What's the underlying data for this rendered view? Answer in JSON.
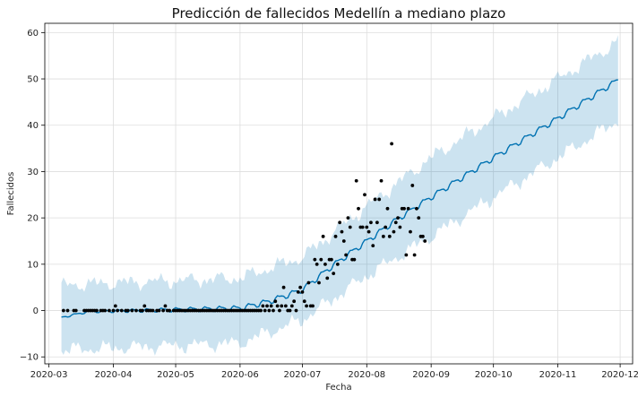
{
  "chart_data": {
    "type": "line",
    "title": "Predicción de fallecidos Medellín a mediano plazo",
    "xlabel": "Fecha",
    "ylabel": "Fallecidos",
    "grid": true,
    "xlim": [
      "2020-02-28",
      "2020-12-07"
    ],
    "ylim": [
      -11.5,
      62
    ],
    "x_ticks": [
      "2020-03-01",
      "2020-04-01",
      "2020-05-01",
      "2020-06-01",
      "2020-07-01",
      "2020-08-01",
      "2020-09-01",
      "2020-10-01",
      "2020-11-01",
      "2020-12-01"
    ],
    "x_tick_labels": [
      "2020-03",
      "2020-04",
      "2020-05",
      "2020-06",
      "2020-07",
      "2020-08",
      "2020-09",
      "2020-10",
      "2020-11",
      "2020-12"
    ],
    "y_ticks": [
      -10,
      0,
      10,
      20,
      30,
      40,
      50,
      60
    ],
    "colors": {
      "forecast": "#0072B2",
      "band": "#0072B2",
      "observed": "#000000"
    },
    "forecast": {
      "start": "2020-03-07",
      "end": "2020-11-30",
      "knots": [
        [
          "2020-03-07",
          -1.5
        ],
        [
          "2020-03-20",
          -0.2
        ],
        [
          "2020-06-01",
          0.5
        ],
        [
          "2020-06-15",
          2.0
        ],
        [
          "2020-07-01",
          4.5
        ],
        [
          "2020-07-15",
          9.5
        ],
        [
          "2020-08-01",
          15.0
        ],
        [
          "2020-08-15",
          19.5
        ],
        [
          "2020-09-01",
          24.5
        ],
        [
          "2020-10-01",
          33.0
        ],
        [
          "2020-11-01",
          41.5
        ],
        [
          "2020-11-30",
          49.8
        ]
      ],
      "band_lower_knots": [
        [
          "2020-03-07",
          -8.5
        ],
        [
          "2020-06-01",
          -7.0
        ],
        [
          "2020-07-01",
          -2.0
        ],
        [
          "2020-08-01",
          7.5
        ],
        [
          "2020-09-01",
          16.0
        ],
        [
          "2020-10-01",
          24.5
        ],
        [
          "2020-11-01",
          33.0
        ],
        [
          "2020-11-30",
          41.0
        ]
      ],
      "band_upper_knots": [
        [
          "2020-03-07",
          5.5
        ],
        [
          "2020-06-01",
          7.0
        ],
        [
          "2020-07-01",
          11.5
        ],
        [
          "2020-08-01",
          22.5
        ],
        [
          "2020-09-01",
          33.0
        ],
        [
          "2020-10-01",
          41.5
        ],
        [
          "2020-11-01",
          50.0
        ],
        [
          "2020-11-30",
          58.0
        ]
      ]
    },
    "observed": [
      [
        "2020-03-08",
        0
      ],
      [
        "2020-03-10",
        0
      ],
      [
        "2020-03-13",
        0
      ],
      [
        "2020-03-14",
        0
      ],
      [
        "2020-03-18",
        0
      ],
      [
        "2020-03-19",
        0
      ],
      [
        "2020-03-20",
        0
      ],
      [
        "2020-03-21",
        0
      ],
      [
        "2020-03-22",
        0
      ],
      [
        "2020-03-23",
        0
      ],
      [
        "2020-03-24",
        0
      ],
      [
        "2020-03-26",
        0
      ],
      [
        "2020-03-27",
        0
      ],
      [
        "2020-03-28",
        0
      ],
      [
        "2020-03-30",
        0
      ],
      [
        "2020-04-01",
        0
      ],
      [
        "2020-04-02",
        1
      ],
      [
        "2020-04-03",
        0
      ],
      [
        "2020-04-05",
        0
      ],
      [
        "2020-04-07",
        0
      ],
      [
        "2020-04-08",
        0
      ],
      [
        "2020-04-10",
        0
      ],
      [
        "2020-04-12",
        0
      ],
      [
        "2020-04-14",
        0
      ],
      [
        "2020-04-15",
        0
      ],
      [
        "2020-04-16",
        1
      ],
      [
        "2020-04-17",
        0
      ],
      [
        "2020-04-18",
        0
      ],
      [
        "2020-04-19",
        0
      ],
      [
        "2020-04-20",
        0
      ],
      [
        "2020-04-22",
        0
      ],
      [
        "2020-04-23",
        0
      ],
      [
        "2020-04-25",
        0
      ],
      [
        "2020-04-26",
        1
      ],
      [
        "2020-04-27",
        0
      ],
      [
        "2020-04-28",
        0
      ],
      [
        "2020-04-30",
        0
      ],
      [
        "2020-05-01",
        0
      ],
      [
        "2020-05-02",
        0
      ],
      [
        "2020-05-03",
        0
      ],
      [
        "2020-05-04",
        0
      ],
      [
        "2020-05-05",
        0
      ],
      [
        "2020-05-06",
        0
      ],
      [
        "2020-05-07",
        0
      ],
      [
        "2020-05-08",
        0
      ],
      [
        "2020-05-09",
        0
      ],
      [
        "2020-05-10",
        0
      ],
      [
        "2020-05-11",
        0
      ],
      [
        "2020-05-12",
        0
      ],
      [
        "2020-05-13",
        0
      ],
      [
        "2020-05-14",
        0
      ],
      [
        "2020-05-15",
        0
      ],
      [
        "2020-05-16",
        0
      ],
      [
        "2020-05-17",
        0
      ],
      [
        "2020-05-18",
        0
      ],
      [
        "2020-05-19",
        0
      ],
      [
        "2020-05-20",
        0
      ],
      [
        "2020-05-21",
        0
      ],
      [
        "2020-05-22",
        0
      ],
      [
        "2020-05-23",
        0
      ],
      [
        "2020-05-24",
        0
      ],
      [
        "2020-05-25",
        0
      ],
      [
        "2020-05-26",
        0
      ],
      [
        "2020-05-27",
        0
      ],
      [
        "2020-05-28",
        0
      ],
      [
        "2020-05-29",
        0
      ],
      [
        "2020-05-30",
        0
      ],
      [
        "2020-05-31",
        0
      ],
      [
        "2020-06-01",
        0
      ],
      [
        "2020-06-02",
        0
      ],
      [
        "2020-06-03",
        0
      ],
      [
        "2020-06-04",
        0
      ],
      [
        "2020-06-05",
        0
      ],
      [
        "2020-06-06",
        0
      ],
      [
        "2020-06-07",
        0
      ],
      [
        "2020-06-08",
        0
      ],
      [
        "2020-06-09",
        0
      ],
      [
        "2020-06-10",
        0
      ],
      [
        "2020-06-11",
        0
      ],
      [
        "2020-06-12",
        1
      ],
      [
        "2020-06-13",
        0
      ],
      [
        "2020-06-14",
        1
      ],
      [
        "2020-06-15",
        0
      ],
      [
        "2020-06-16",
        1
      ],
      [
        "2020-06-17",
        0
      ],
      [
        "2020-06-18",
        2
      ],
      [
        "2020-06-19",
        1
      ],
      [
        "2020-06-20",
        0
      ],
      [
        "2020-06-21",
        1
      ],
      [
        "2020-06-22",
        5
      ],
      [
        "2020-06-23",
        1
      ],
      [
        "2020-06-24",
        0
      ],
      [
        "2020-06-25",
        0
      ],
      [
        "2020-06-26",
        1
      ],
      [
        "2020-06-27",
        2
      ],
      [
        "2020-06-28",
        0
      ],
      [
        "2020-06-29",
        4
      ],
      [
        "2020-06-30",
        5
      ],
      [
        "2020-07-01",
        4
      ],
      [
        "2020-07-02",
        2
      ],
      [
        "2020-07-03",
        1
      ],
      [
        "2020-07-04",
        6
      ],
      [
        "2020-07-05",
        1
      ],
      [
        "2020-07-06",
        1
      ],
      [
        "2020-07-07",
        11
      ],
      [
        "2020-07-08",
        10
      ],
      [
        "2020-07-09",
        6
      ],
      [
        "2020-07-10",
        11
      ],
      [
        "2020-07-11",
        16
      ],
      [
        "2020-07-12",
        10
      ],
      [
        "2020-07-13",
        7
      ],
      [
        "2020-07-14",
        11
      ],
      [
        "2020-07-15",
        11
      ],
      [
        "2020-07-16",
        8
      ],
      [
        "2020-07-17",
        16
      ],
      [
        "2020-07-18",
        10
      ],
      [
        "2020-07-19",
        19
      ],
      [
        "2020-07-20",
        17
      ],
      [
        "2020-07-21",
        15
      ],
      [
        "2020-07-22",
        12
      ],
      [
        "2020-07-23",
        20
      ],
      [
        "2020-07-24",
        18
      ],
      [
        "2020-07-25",
        11
      ],
      [
        "2020-07-26",
        11
      ],
      [
        "2020-07-27",
        28
      ],
      [
        "2020-07-28",
        22
      ],
      [
        "2020-07-29",
        18
      ],
      [
        "2020-07-30",
        18
      ],
      [
        "2020-07-31",
        25
      ],
      [
        "2020-08-01",
        18
      ],
      [
        "2020-08-02",
        17
      ],
      [
        "2020-08-03",
        19
      ],
      [
        "2020-08-04",
        14
      ],
      [
        "2020-08-05",
        24
      ],
      [
        "2020-08-06",
        19
      ],
      [
        "2020-08-07",
        24
      ],
      [
        "2020-08-08",
        28
      ],
      [
        "2020-08-09",
        16
      ],
      [
        "2020-08-10",
        18
      ],
      [
        "2020-08-11",
        22
      ],
      [
        "2020-08-12",
        16
      ],
      [
        "2020-08-13",
        36
      ],
      [
        "2020-08-14",
        17
      ],
      [
        "2020-08-15",
        19
      ],
      [
        "2020-08-16",
        20
      ],
      [
        "2020-08-17",
        18
      ],
      [
        "2020-08-18",
        22
      ],
      [
        "2020-08-19",
        22
      ],
      [
        "2020-08-20",
        12
      ],
      [
        "2020-08-21",
        22
      ],
      [
        "2020-08-22",
        17
      ],
      [
        "2020-08-23",
        27
      ],
      [
        "2020-08-24",
        12
      ],
      [
        "2020-08-25",
        22
      ],
      [
        "2020-08-26",
        20
      ],
      [
        "2020-08-27",
        16
      ],
      [
        "2020-08-28",
        16
      ],
      [
        "2020-08-29",
        15
      ]
    ]
  }
}
